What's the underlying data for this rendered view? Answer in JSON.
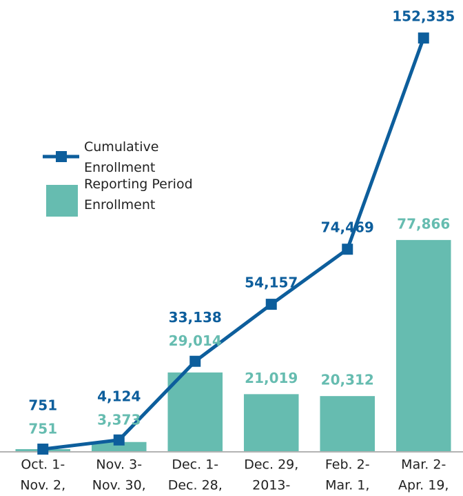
{
  "chart_data": {
    "type": "bar+line",
    "categories": [
      [
        "Oct. 1-",
        "Nov. 2,"
      ],
      [
        "Nov. 3-",
        "Nov. 30,"
      ],
      [
        "Dec. 1-",
        "Dec. 28,"
      ],
      [
        "Dec. 29,",
        "2013-"
      ],
      [
        "Feb. 2-",
        "Mar. 1,"
      ],
      [
        "Mar. 2-",
        "Apr. 19,"
      ]
    ],
    "series": [
      {
        "name": "Cumulative Enrollment",
        "type": "line",
        "color": "#0d5e9c",
        "values": [
          751,
          4124,
          33138,
          54157,
          74469,
          152335
        ],
        "value_labels": [
          "751",
          "4,124",
          "33,138",
          "54,157",
          "74,469",
          "152,335"
        ]
      },
      {
        "name": "Reporting Period Enrollment",
        "type": "bar",
        "color": "#66bcb0",
        "values": [
          751,
          3373,
          29014,
          21019,
          20312,
          77866
        ],
        "value_labels": [
          "751",
          "3,373",
          "29,014",
          "21,019",
          "20,312",
          "77,866"
        ]
      }
    ],
    "ylim": [
      0,
      160000
    ]
  }
}
